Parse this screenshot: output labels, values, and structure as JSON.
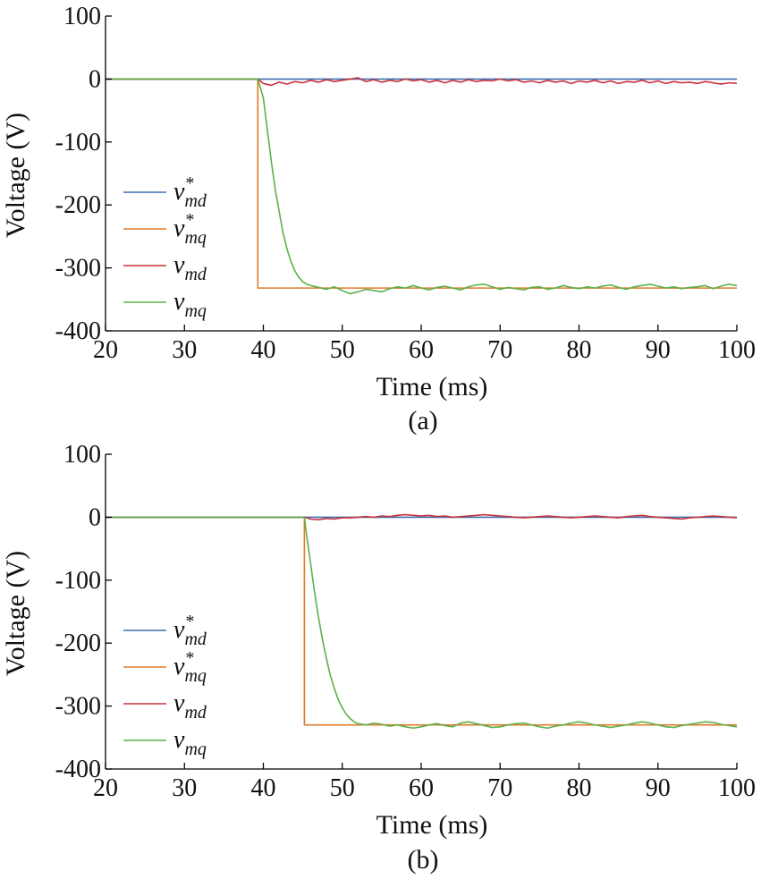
{
  "chart_data": [
    {
      "type": "line",
      "caption": "(a)",
      "xlabel": "Time (ms)",
      "ylabel": "Voltage (V)",
      "xlim": [
        20,
        100
      ],
      "ylim": [
        -400,
        100
      ],
      "xticks": [
        20,
        30,
        40,
        50,
        60,
        70,
        80,
        90,
        100
      ],
      "yticks": [
        100,
        0,
        -100,
        -200,
        -300,
        -400
      ],
      "legend_position": "center-left",
      "step_time": 39.3,
      "series": [
        {
          "name": "v*md",
          "label_main": "v",
          "label_sup": "*",
          "label_sub": "md",
          "color": "#3e6fb0",
          "x": [
            20,
            100
          ],
          "y": [
            0,
            0
          ]
        },
        {
          "name": "v*mq",
          "label_main": "v",
          "label_sup": "*",
          "label_sub": "mq",
          "color": "#e07b2a",
          "x": [
            20,
            39.3,
            39.3,
            100
          ],
          "y": [
            0,
            0,
            -332,
            -332
          ]
        },
        {
          "name": "vmd",
          "label_main": "v",
          "label_sup": "",
          "label_sub": "md",
          "color": "#c8323c",
          "x": [
            20,
            39.3,
            40,
            41,
            42,
            43,
            44,
            45,
            46,
            47,
            48,
            49,
            50,
            51,
            52,
            53,
            54,
            55,
            56,
            57,
            58,
            59,
            60,
            61,
            62,
            63,
            64,
            65,
            66,
            67,
            68,
            69,
            70,
            71,
            72,
            73,
            74,
            75,
            76,
            77,
            78,
            79,
            80,
            81,
            82,
            83,
            84,
            85,
            86,
            87,
            88,
            89,
            90,
            91,
            92,
            93,
            94,
            95,
            96,
            97,
            98,
            99,
            100
          ],
          "y": [
            0,
            0,
            -7,
            -10,
            -5,
            -8,
            -4,
            -6,
            -2,
            -5,
            -1,
            -4,
            -2,
            0,
            2,
            -4,
            -1,
            -5,
            -2,
            -4,
            0,
            -3,
            -1,
            -5,
            -2,
            -6,
            -2,
            -5,
            -1,
            -4,
            -2,
            -3,
            0,
            -3,
            -1,
            -5,
            -3,
            -6,
            -2,
            -5,
            -3,
            -7,
            -3,
            -5,
            -2,
            -6,
            -3,
            -7,
            -4,
            -5,
            -2,
            -6,
            -3,
            -7,
            -4,
            -6,
            -5,
            -7,
            -4,
            -6,
            -8,
            -6,
            -7
          ]
        },
        {
          "name": "vmq",
          "label_main": "v",
          "label_sup": "",
          "label_sub": "mq",
          "color": "#5cb04a",
          "x": [
            20,
            39.3,
            40,
            40.5,
            41,
            41.5,
            42,
            42.5,
            43,
            43.5,
            44,
            44.5,
            45,
            45.5,
            46,
            47,
            48,
            49,
            50,
            51,
            52,
            53,
            54,
            55,
            56,
            57,
            58,
            59,
            60,
            61,
            62,
            63,
            64,
            65,
            66,
            67,
            68,
            69,
            70,
            71,
            72,
            73,
            74,
            75,
            76,
            77,
            78,
            79,
            80,
            81,
            82,
            83,
            84,
            85,
            86,
            87,
            88,
            89,
            90,
            91,
            92,
            93,
            94,
            95,
            96,
            97,
            98,
            99,
            100
          ],
          "y": [
            0,
            0,
            -30,
            -80,
            -130,
            -175,
            -210,
            -245,
            -270,
            -290,
            -305,
            -315,
            -322,
            -326,
            -328,
            -331,
            -334,
            -330,
            -336,
            -341,
            -338,
            -334,
            -336,
            -338,
            -333,
            -330,
            -332,
            -328,
            -332,
            -335,
            -331,
            -329,
            -332,
            -335,
            -330,
            -327,
            -326,
            -330,
            -334,
            -331,
            -333,
            -335,
            -331,
            -330,
            -334,
            -332,
            -328,
            -331,
            -333,
            -330,
            -332,
            -329,
            -327,
            -331,
            -334,
            -330,
            -328,
            -326,
            -329,
            -332,
            -330,
            -333,
            -331,
            -330,
            -328,
            -333,
            -329,
            -326,
            -328
          ]
        }
      ]
    },
    {
      "type": "line",
      "caption": "(b)",
      "xlabel": "Time (ms)",
      "ylabel": "Voltage (V)",
      "xlim": [
        20,
        100
      ],
      "ylim": [
        -400,
        100
      ],
      "xticks": [
        20,
        30,
        40,
        50,
        60,
        70,
        80,
        90,
        100
      ],
      "yticks": [
        100,
        0,
        -100,
        -200,
        -300,
        -400
      ],
      "legend_position": "center-left",
      "step_time": 45.2,
      "series": [
        {
          "name": "v*md",
          "label_main": "v",
          "label_sup": "*",
          "label_sub": "md",
          "color": "#3e6fb0",
          "x": [
            20,
            100
          ],
          "y": [
            0,
            0
          ]
        },
        {
          "name": "v*mq",
          "label_main": "v",
          "label_sup": "*",
          "label_sub": "mq",
          "color": "#e07b2a",
          "x": [
            20,
            45.2,
            45.2,
            100
          ],
          "y": [
            0,
            0,
            -330,
            -330
          ]
        },
        {
          "name": "vmd",
          "label_main": "v",
          "label_sup": "",
          "label_sub": "md",
          "color": "#c8323c",
          "x": [
            20,
            45.2,
            46,
            47,
            48,
            49,
            50,
            51,
            52,
            53,
            54,
            55,
            56,
            57,
            58,
            59,
            60,
            61,
            62,
            63,
            64,
            65,
            66,
            67,
            68,
            69,
            70,
            71,
            72,
            73,
            74,
            75,
            76,
            77,
            78,
            79,
            80,
            81,
            82,
            83,
            84,
            85,
            86,
            87,
            88,
            89,
            90,
            91,
            92,
            93,
            94,
            95,
            96,
            97,
            98,
            99,
            100
          ],
          "y": [
            0,
            0,
            -3,
            -4,
            -2,
            -3,
            -1,
            -1,
            0,
            1,
            0,
            2,
            1,
            3,
            4,
            3,
            2,
            3,
            1,
            2,
            0,
            1,
            2,
            3,
            4,
            3,
            2,
            1,
            0,
            -1,
            0,
            1,
            2,
            1,
            0,
            -1,
            0,
            1,
            2,
            1,
            0,
            -1,
            1,
            2,
            3,
            1,
            0,
            -1,
            -2,
            -3,
            -1,
            0,
            1,
            2,
            1,
            0,
            -1
          ]
        },
        {
          "name": "vmq",
          "label_main": "v",
          "label_sup": "",
          "label_sub": "mq",
          "color": "#5cb04a",
          "x": [
            20,
            45.2,
            45.5,
            46,
            46.5,
            47,
            47.5,
            48,
            48.5,
            49,
            49.5,
            50,
            50.5,
            51,
            51.5,
            52,
            53,
            54,
            55,
            56,
            57,
            58,
            59,
            60,
            61,
            62,
            63,
            64,
            65,
            66,
            67,
            68,
            69,
            70,
            71,
            72,
            73,
            74,
            75,
            76,
            77,
            78,
            79,
            80,
            81,
            82,
            83,
            84,
            85,
            86,
            87,
            88,
            89,
            90,
            91,
            92,
            93,
            94,
            95,
            96,
            97,
            98,
            99,
            100
          ],
          "y": [
            0,
            0,
            -30,
            -75,
            -120,
            -160,
            -195,
            -225,
            -252,
            -272,
            -290,
            -303,
            -313,
            -320,
            -325,
            -328,
            -330,
            -327,
            -329,
            -332,
            -330,
            -333,
            -335,
            -333,
            -330,
            -328,
            -331,
            -333,
            -327,
            -325,
            -328,
            -331,
            -334,
            -333,
            -330,
            -328,
            -327,
            -330,
            -333,
            -335,
            -332,
            -330,
            -327,
            -325,
            -327,
            -330,
            -332,
            -334,
            -332,
            -330,
            -327,
            -325,
            -327,
            -330,
            -333,
            -334,
            -331,
            -329,
            -327,
            -325,
            -326,
            -329,
            -331,
            -333
          ]
        }
      ]
    }
  ]
}
